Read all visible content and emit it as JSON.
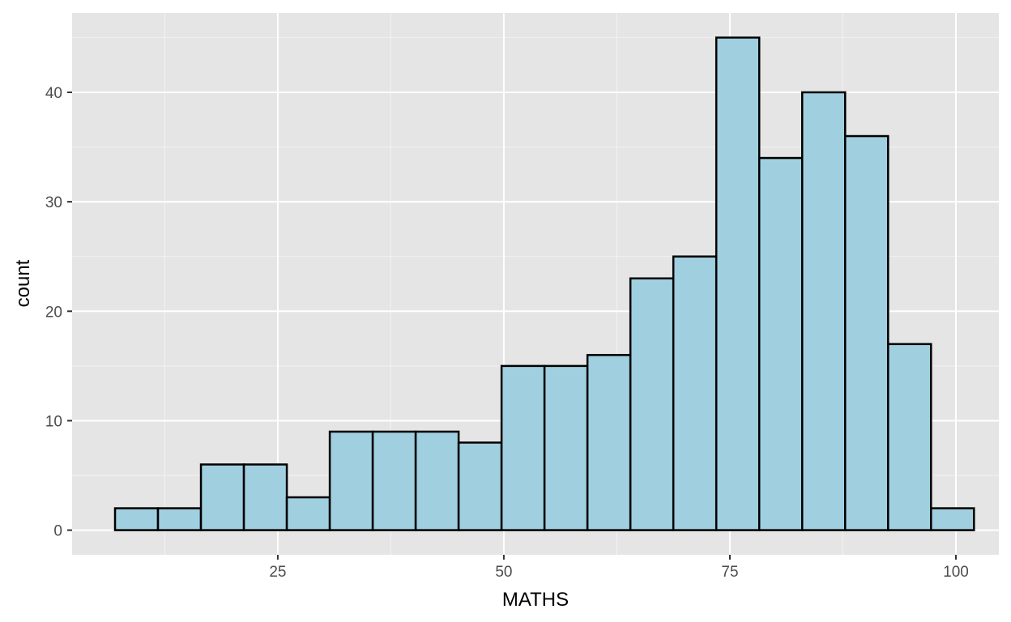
{
  "chart_data": {
    "type": "bar",
    "subtype": "histogram",
    "title": "",
    "xlabel": "MATHS",
    "ylabel": "count",
    "xlim": [
      2.25,
      104.75
    ],
    "ylim": [
      -2.25,
      47.25
    ],
    "x_ticks": [
      25,
      50,
      75,
      100
    ],
    "x_tick_labels": [
      "25",
      "50",
      "75",
      "100"
    ],
    "y_ticks": [
      0,
      10,
      20,
      30,
      40
    ],
    "y_tick_labels": [
      "0",
      "10",
      "20",
      "30",
      "40"
    ],
    "bin_width": 4.75,
    "bins": [
      {
        "start": 7.0,
        "end": 11.75,
        "count": 2
      },
      {
        "start": 11.75,
        "end": 16.5,
        "count": 2
      },
      {
        "start": 16.5,
        "end": 21.25,
        "count": 6
      },
      {
        "start": 21.25,
        "end": 26.0,
        "count": 6
      },
      {
        "start": 26.0,
        "end": 30.75,
        "count": 3
      },
      {
        "start": 30.75,
        "end": 35.5,
        "count": 9
      },
      {
        "start": 35.5,
        "end": 40.25,
        "count": 9
      },
      {
        "start": 40.25,
        "end": 45.0,
        "count": 9
      },
      {
        "start": 45.0,
        "end": 49.75,
        "count": 8
      },
      {
        "start": 49.75,
        "end": 54.5,
        "count": 15
      },
      {
        "start": 54.5,
        "end": 59.25,
        "count": 15
      },
      {
        "start": 59.25,
        "end": 64.0,
        "count": 16
      },
      {
        "start": 64.0,
        "end": 68.75,
        "count": 23
      },
      {
        "start": 68.75,
        "end": 73.5,
        "count": 25
      },
      {
        "start": 73.5,
        "end": 78.25,
        "count": 45
      },
      {
        "start": 78.25,
        "end": 83.0,
        "count": 34
      },
      {
        "start": 83.0,
        "end": 87.75,
        "count": 40
      },
      {
        "start": 87.75,
        "end": 92.5,
        "count": 36
      },
      {
        "start": 92.5,
        "end": 97.25,
        "count": 17
      },
      {
        "start": 97.25,
        "end": 102.0,
        "count": 2
      }
    ],
    "grid": true,
    "legend": "none",
    "colors": {
      "panel_background": "#e5e5e5",
      "grid_major": "#ffffff",
      "grid_minor": "#f2f2f2",
      "bar_fill": "#a0cfe0",
      "bar_outline": "#000000",
      "tick_color": "#333333"
    }
  }
}
